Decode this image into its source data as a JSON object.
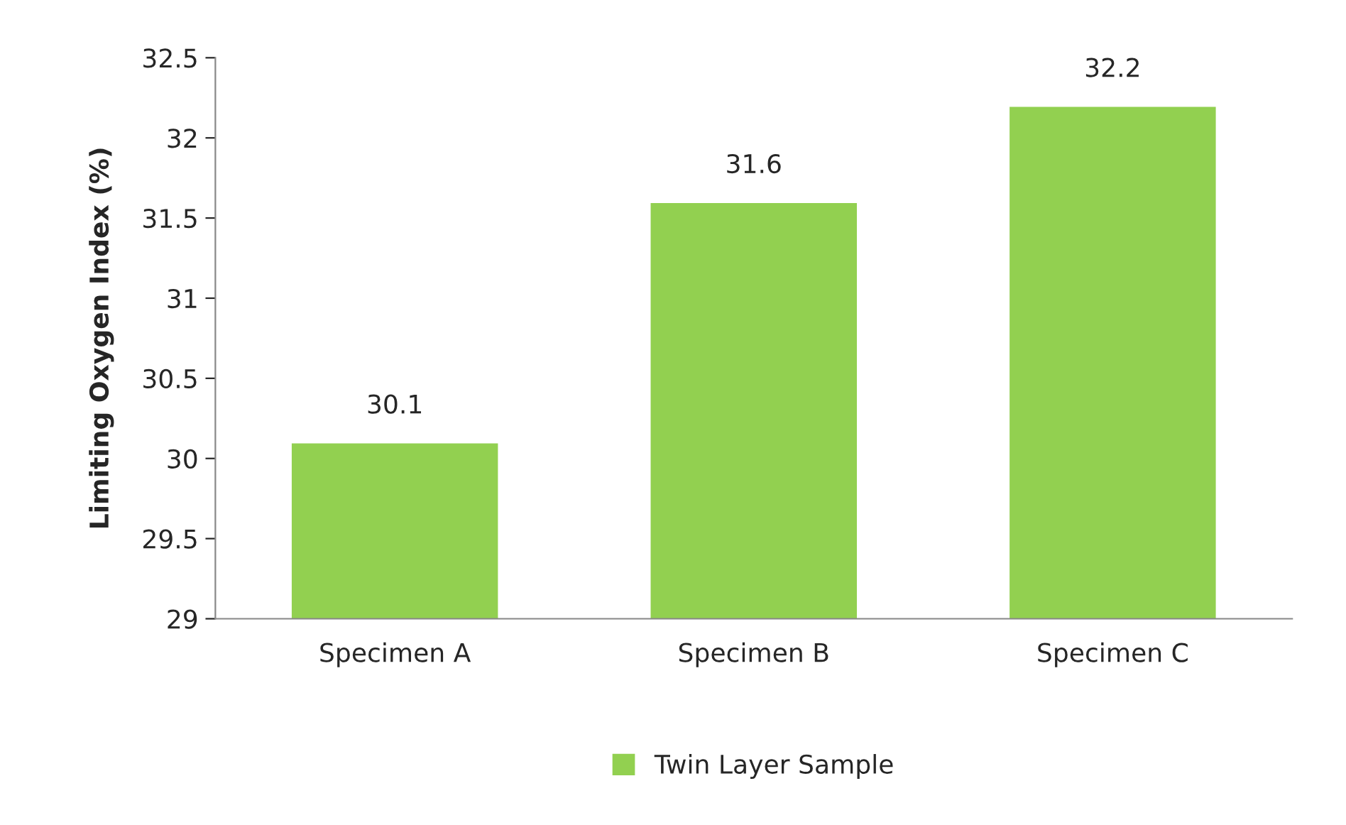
{
  "chart_data": {
    "type": "bar",
    "ylabel": "Limiting Oxygen Index (%)",
    "categories": [
      "Specimen A",
      "Specimen B",
      "Specimen C"
    ],
    "series": [
      {
        "name": "Twin Layer Sample",
        "color": "#92d050",
        "values": [
          30.1,
          31.6,
          32.2
        ]
      }
    ],
    "ylim": [
      29,
      32.5
    ],
    "yticks": [
      29,
      29.5,
      30,
      30.5,
      31,
      31.5,
      32,
      32.5
    ],
    "data_labels": true,
    "grid": false,
    "legend": "bottom"
  }
}
